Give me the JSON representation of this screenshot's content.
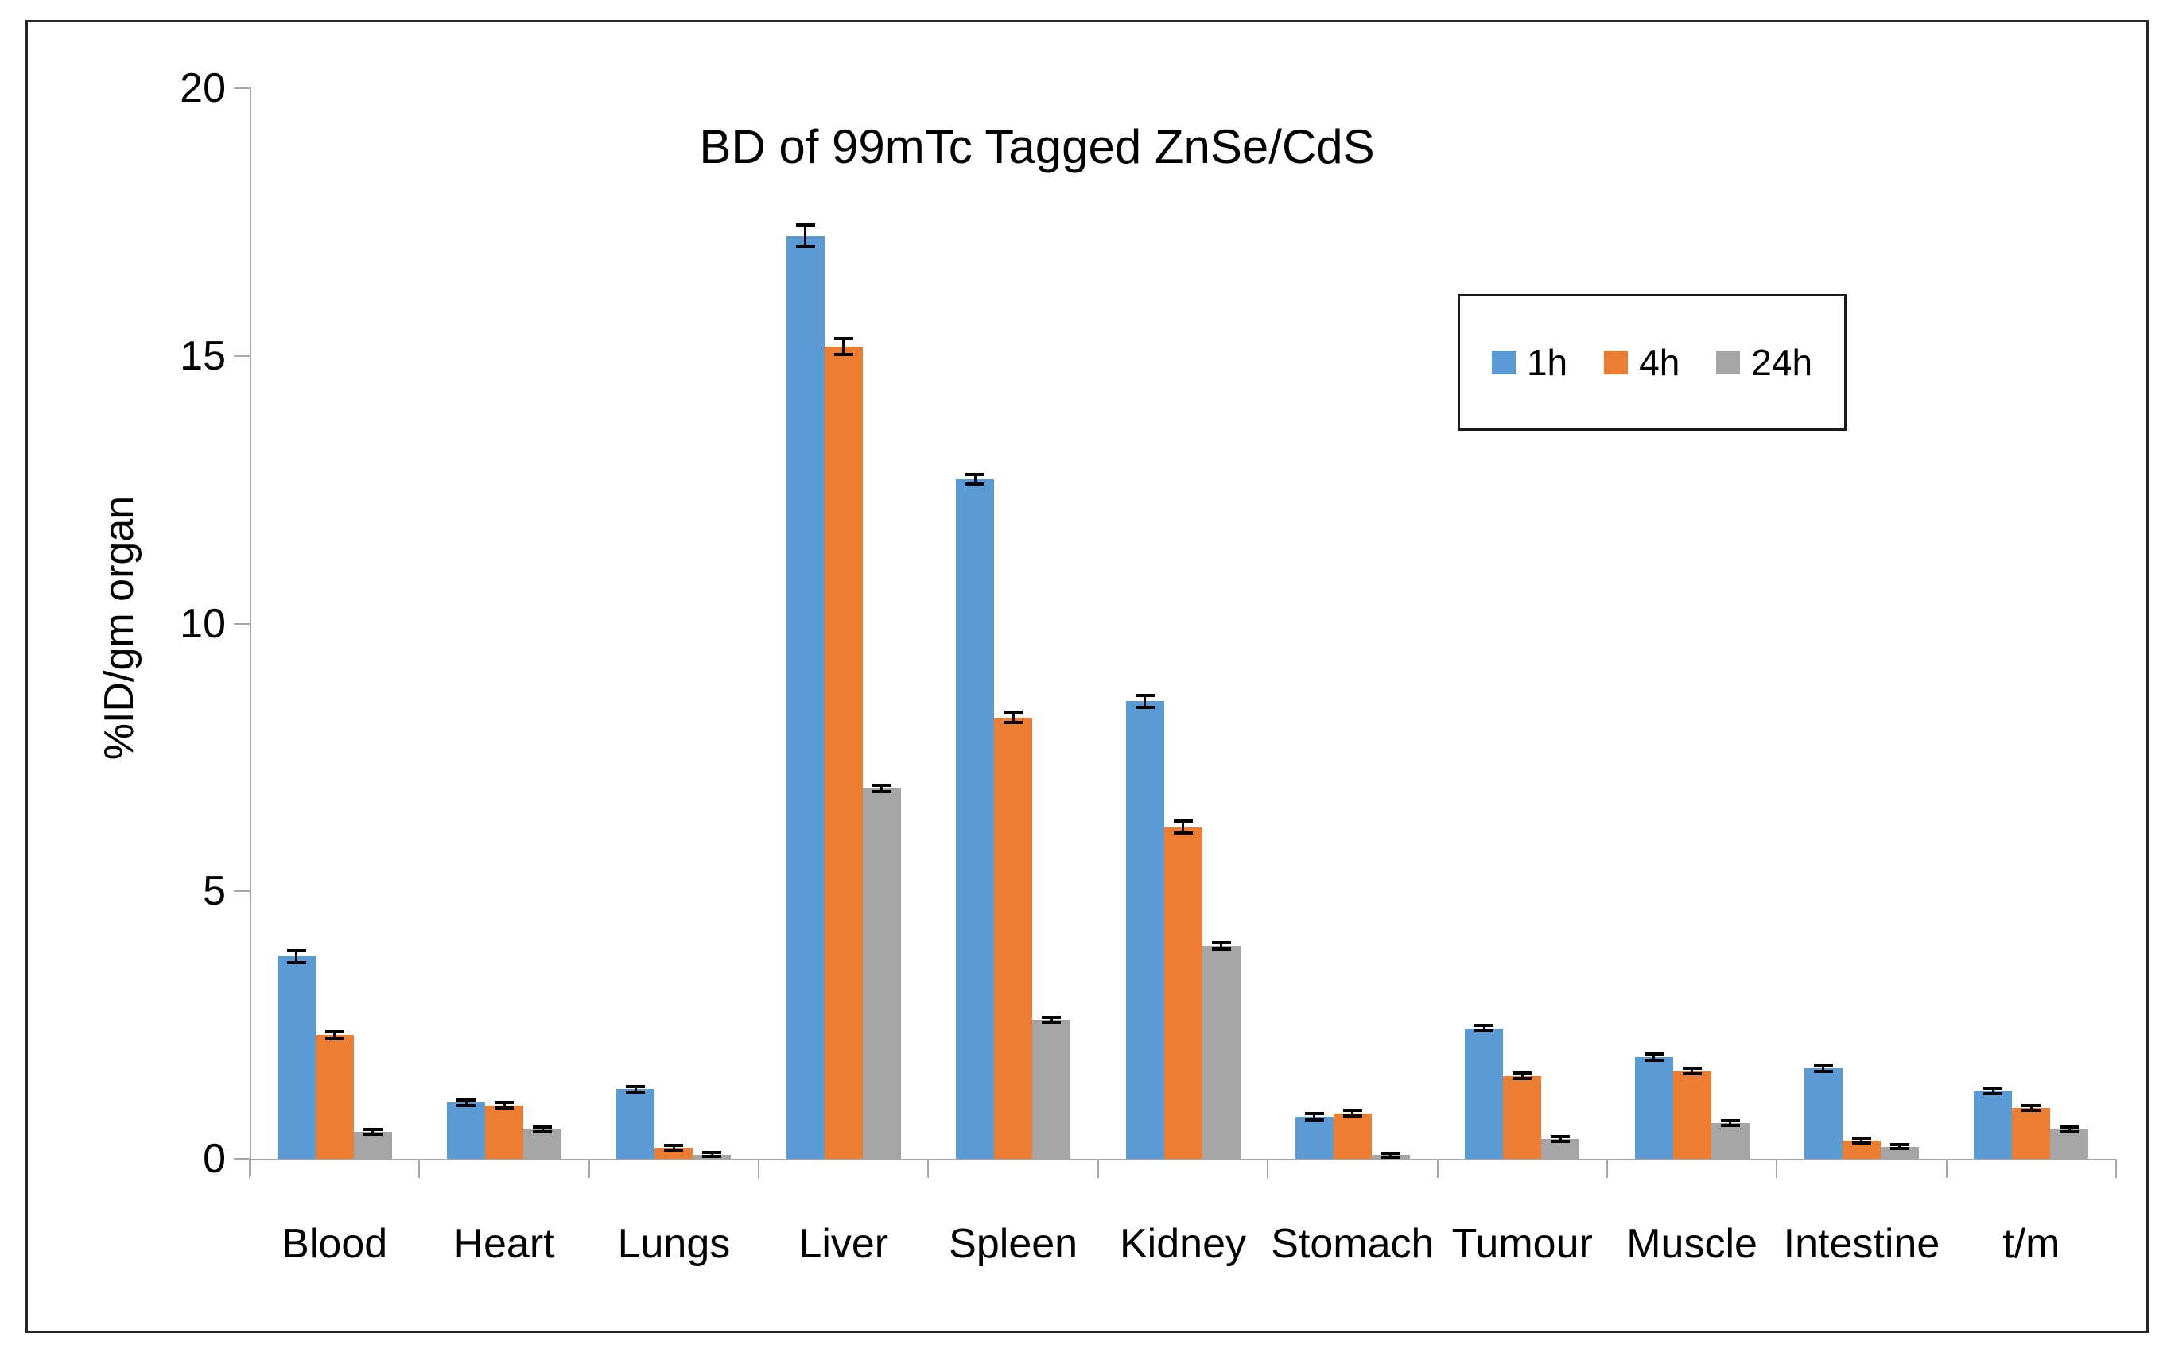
{
  "title": "BD of 99mTc Tagged ZnSe/CdS",
  "y_axis": {
    "label": "%ID/gm organ",
    "tick_labels": [
      "0",
      "5",
      "10",
      "15",
      "20"
    ]
  },
  "legend": {
    "position": "top-right"
  },
  "colors": {
    "series_1h": "#5B9BD5",
    "series_4h": "#ED7D31",
    "series_24h": "#A5A5A5",
    "axis": "#A6A6A6",
    "error_bar": "#000000",
    "border": "#262626"
  },
  "chart_data": {
    "type": "bar",
    "title": "BD of 99mTc Tagged ZnSe/CdS",
    "xlabel": "",
    "ylabel": "%ID/gm organ",
    "ylim": [
      0,
      20
    ],
    "yticks": [
      0,
      5,
      10,
      15,
      20
    ],
    "grid": false,
    "legend_position": "top-right",
    "error_bars": true,
    "categories": [
      "Blood",
      "Heart",
      "Lungs",
      "Liver",
      "Spleen",
      "Kidney",
      "Stomach",
      "Tumour",
      "Muscle",
      "Intestine",
      "t/m"
    ],
    "series": [
      {
        "name": "1h",
        "color": "#5B9BD5",
        "values": [
          3.78,
          1.05,
          1.3,
          17.25,
          12.7,
          8.55,
          0.79,
          2.44,
          1.9,
          1.69,
          1.27
        ],
        "errors": [
          0.09,
          0.04,
          0.04,
          0.18,
          0.08,
          0.1,
          0.04,
          0.04,
          0.04,
          0.04,
          0.04
        ]
      },
      {
        "name": "4h",
        "color": "#ED7D31",
        "values": [
          2.31,
          1.0,
          0.21,
          15.18,
          8.25,
          6.2,
          0.85,
          1.55,
          1.64,
          0.34,
          0.95
        ],
        "errors": [
          0.05,
          0.04,
          0.03,
          0.13,
          0.08,
          0.1,
          0.04,
          0.04,
          0.04,
          0.03,
          0.03
        ]
      },
      {
        "name": "24h",
        "color": "#A5A5A5",
        "values": [
          0.5,
          0.55,
          0.08,
          6.92,
          2.6,
          3.98,
          0.07,
          0.37,
          0.67,
          0.23,
          0.55
        ],
        "errors": [
          0.03,
          0.03,
          0.02,
          0.04,
          0.03,
          0.04,
          0.02,
          0.03,
          0.03,
          0.02,
          0.03
        ]
      }
    ]
  }
}
